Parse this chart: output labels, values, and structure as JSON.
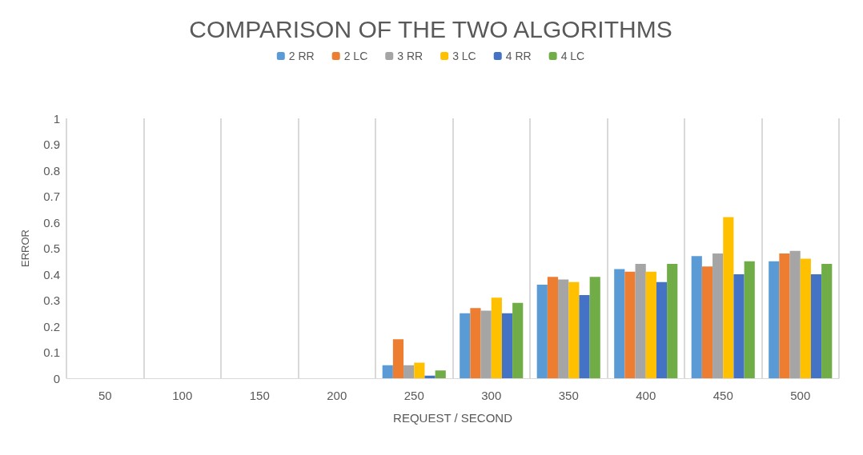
{
  "chart_data": {
    "type": "bar",
    "title": "COMPARISON OF THE TWO ALGORITHMS",
    "xlabel": "REQUEST / SECOND",
    "ylabel": "ERROR",
    "categories": [
      "50",
      "100",
      "150",
      "200",
      "250",
      "300",
      "350",
      "400",
      "450",
      "500"
    ],
    "series": [
      {
        "name": "2 RR",
        "color": "#5b9bd5",
        "values": [
          0,
          0,
          0,
          0,
          0.05,
          0.25,
          0.36,
          0.42,
          0.47,
          0.45
        ]
      },
      {
        "name": "2 LC",
        "color": "#ed7d31",
        "values": [
          0,
          0,
          0,
          0,
          0.15,
          0.27,
          0.39,
          0.41,
          0.43,
          0.48
        ]
      },
      {
        "name": "3 RR",
        "color": "#a5a5a5",
        "values": [
          0,
          0,
          0,
          0,
          0.05,
          0.26,
          0.38,
          0.44,
          0.48,
          0.49
        ]
      },
      {
        "name": "3 LC",
        "color": "#ffc000",
        "values": [
          0,
          0,
          0,
          0,
          0.06,
          0.31,
          0.37,
          0.41,
          0.62,
          0.46
        ]
      },
      {
        "name": "4 RR",
        "color": "#4472c4",
        "values": [
          0,
          0,
          0,
          0,
          0.01,
          0.25,
          0.32,
          0.37,
          0.4,
          0.4
        ]
      },
      {
        "name": "4 LC",
        "color": "#70ad47",
        "values": [
          0,
          0,
          0,
          0,
          0.03,
          0.29,
          0.39,
          0.44,
          0.45,
          0.44
        ]
      }
    ],
    "ylim": [
      0,
      1
    ],
    "yticks": [
      0,
      0.1,
      0.2,
      0.3,
      0.4,
      0.5,
      0.6,
      0.7,
      0.8,
      0.9,
      1
    ],
    "grid": "x",
    "legend": "top"
  }
}
